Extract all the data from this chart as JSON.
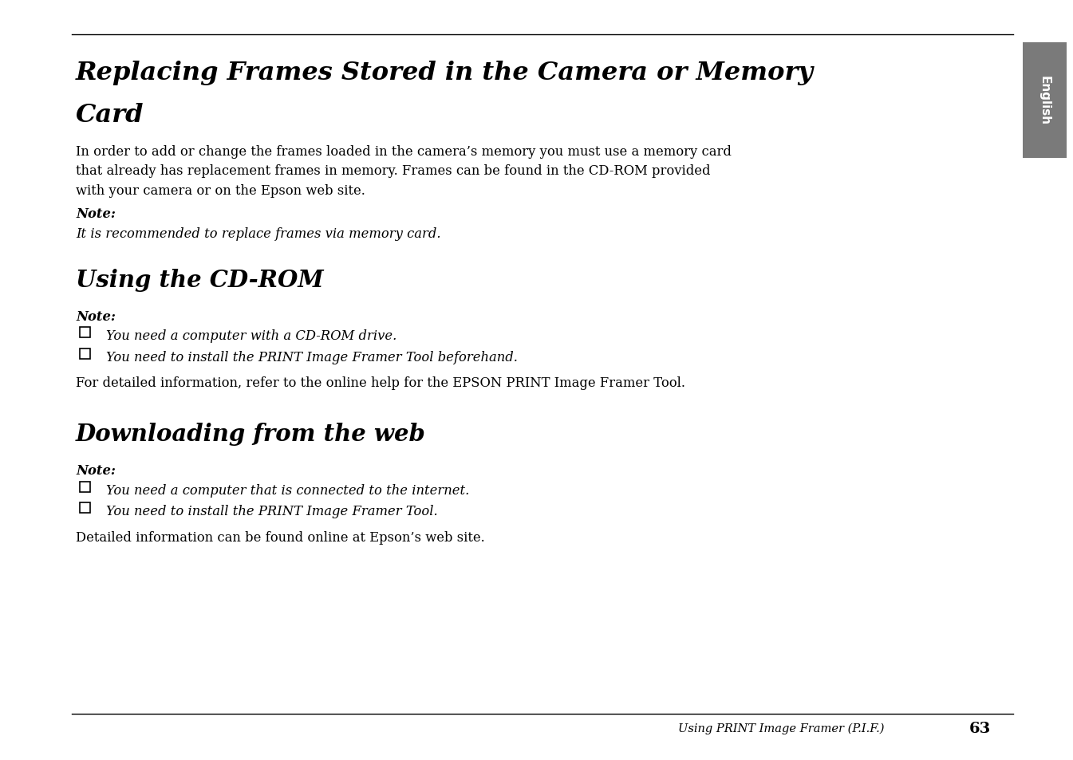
{
  "bg_color": "#ffffff",
  "sidebar_color": "#7a7a7a",
  "sidebar_text": "English",
  "main_title_line1": "Replacing Frames Stored in the Camera or Memory",
  "main_title_line2": "Card",
  "body_text1_lines": [
    "In order to add or change the frames loaded in the camera’s memory you must use a memory card",
    "that already has replacement frames in memory. Frames can be found in the CD-ROM provided",
    "with your camera or on the Epson web site."
  ],
  "note1_label": "Note:",
  "note1_text": "It is recommended to replace frames via memory card.",
  "section2_title": "Using the CD-ROM",
  "note2_label": "Note:",
  "bullet_cd1": "You need a computer with a CD-ROM drive.",
  "bullet_cd2": "You need to install the PRINT Image Framer Tool beforehand.",
  "body_text2": "For detailed information, refer to the online help for the EPSON PRINT Image Framer Tool.",
  "section3_title": "Downloading from the web",
  "note3_label": "Note:",
  "bullet_web1": "You need a computer that is connected to the internet.",
  "bullet_web2": "You need to install the PRINT Image Framer Tool.",
  "body_text3": "Detailed information can be found online at Epson’s web site.",
  "footer_text": "Using PRINT Image Framer (P.I.F.)",
  "footer_page": "63"
}
